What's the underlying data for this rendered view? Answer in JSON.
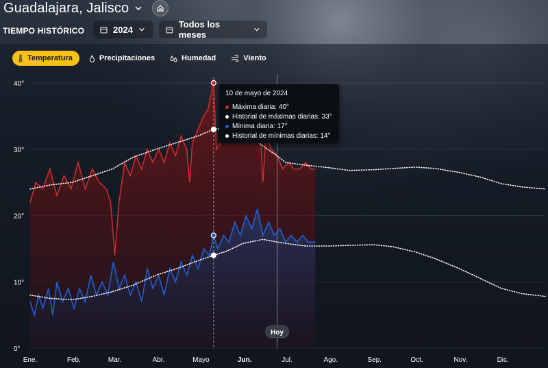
{
  "header": {
    "location": "Guadalajara, Jalisco",
    "section_label": "TIEMPO HISTÓRICO",
    "year": "2024",
    "months": "Todos los meses"
  },
  "tabs": [
    {
      "label": "Temperatura",
      "icon": "thermometer-icon",
      "active": true
    },
    {
      "label": "Precipitaciones",
      "icon": "droplet-icon",
      "active": false
    },
    {
      "label": "Humedad",
      "icon": "humidity-icon",
      "active": false
    },
    {
      "label": "Viento",
      "icon": "wind-icon",
      "active": false
    }
  ],
  "colors": {
    "accent": "#f6c21a",
    "max_line": "#d02a2a",
    "min_line": "#1f5fd6",
    "historical": "#ffffff"
  },
  "tooltip": {
    "date": "10 de mayo de 2024",
    "rows": [
      {
        "text": "Máxima diaria: 40°",
        "color": "#d02a2a"
      },
      {
        "text": "Historial de máximas diarias: 33°",
        "color": "#ffffff"
      },
      {
        "text": "Mínima diaria: 17°",
        "color": "#1f5fd6"
      },
      {
        "text": "Historial de mínimas diarias: 14°",
        "color": "#ffffff"
      }
    ]
  },
  "today_label": "Hoy",
  "chart_data": {
    "type": "line",
    "x_categories": [
      "Ene.",
      "Feb.",
      "Mar.",
      "Abr.",
      "Mayo",
      "Jun.",
      "Jul.",
      "Ago.",
      "Sep.",
      "Oct.",
      "Nov.",
      "Dic."
    ],
    "highlighted_month": "Jun.",
    "ylim": [
      0,
      40
    ],
    "yticks": [
      "0°",
      "10°",
      "20°",
      "30°",
      "40°"
    ],
    "grid": true,
    "today_day_of_year": 176,
    "selected_day_of_year": 131,
    "series": [
      {
        "name": "Máxima diaria",
        "style": "solid",
        "points": [
          [
            1,
            22
          ],
          [
            5,
            25
          ],
          [
            10,
            24
          ],
          [
            15,
            27
          ],
          [
            20,
            23
          ],
          [
            25,
            26
          ],
          [
            30,
            24
          ],
          [
            35,
            28
          ],
          [
            40,
            24
          ],
          [
            45,
            27
          ],
          [
            50,
            25
          ],
          [
            55,
            24
          ],
          [
            58,
            22
          ],
          [
            61,
            14
          ],
          [
            64,
            22
          ],
          [
            68,
            28
          ],
          [
            72,
            26
          ],
          [
            76,
            29
          ],
          [
            80,
            27
          ],
          [
            84,
            30
          ],
          [
            88,
            28
          ],
          [
            92,
            30
          ],
          [
            96,
            28
          ],
          [
            100,
            31
          ],
          [
            104,
            29
          ],
          [
            108,
            32
          ],
          [
            112,
            30
          ],
          [
            114,
            25
          ],
          [
            116,
            31
          ],
          [
            120,
            33
          ],
          [
            124,
            35
          ],
          [
            127,
            36
          ],
          [
            129,
            38
          ],
          [
            131,
            40
          ],
          [
            133,
            30
          ],
          [
            136,
            31
          ],
          [
            140,
            33
          ],
          [
            144,
            31
          ],
          [
            148,
            32
          ],
          [
            152,
            34
          ],
          [
            156,
            32
          ],
          [
            160,
            34
          ],
          [
            164,
            33
          ],
          [
            166,
            25
          ],
          [
            168,
            32
          ],
          [
            172,
            30
          ],
          [
            176,
            29
          ],
          [
            180,
            27
          ],
          [
            184,
            28
          ],
          [
            188,
            27
          ],
          [
            192,
            27
          ],
          [
            196,
            28
          ],
          [
            200,
            27
          ],
          [
            203,
            27
          ]
        ]
      },
      {
        "name": "Historial de máximas diarias",
        "style": "dotted",
        "points": [
          [
            1,
            24
          ],
          [
            15,
            24.6
          ],
          [
            31,
            25
          ],
          [
            45,
            26
          ],
          [
            59,
            27
          ],
          [
            74,
            28.8
          ],
          [
            90,
            30
          ],
          [
            105,
            31
          ],
          [
            120,
            32
          ],
          [
            131,
            33
          ],
          [
            140,
            33.2
          ],
          [
            152,
            32.5
          ],
          [
            166,
            30.5
          ],
          [
            176,
            29
          ],
          [
            182,
            28
          ],
          [
            196,
            27.6
          ],
          [
            213,
            27.2
          ],
          [
            227,
            26.8
          ],
          [
            244,
            26.9
          ],
          [
            258,
            27.1
          ],
          [
            274,
            27.3
          ],
          [
            288,
            27.1
          ],
          [
            305,
            26.5
          ],
          [
            320,
            25.8
          ],
          [
            335,
            24.8
          ],
          [
            350,
            24.3
          ],
          [
            366,
            24
          ]
        ]
      },
      {
        "name": "Mínima diaria",
        "style": "solid",
        "points": [
          [
            1,
            7
          ],
          [
            4,
            5
          ],
          [
            7,
            8
          ],
          [
            10,
            6
          ],
          [
            14,
            9
          ],
          [
            17,
            5
          ],
          [
            20,
            10
          ],
          [
            24,
            7
          ],
          [
            28,
            9
          ],
          [
            32,
            6
          ],
          [
            36,
            9
          ],
          [
            40,
            7
          ],
          [
            44,
            11
          ],
          [
            48,
            8
          ],
          [
            52,
            10
          ],
          [
            56,
            8
          ],
          [
            60,
            13
          ],
          [
            64,
            9
          ],
          [
            68,
            11
          ],
          [
            72,
            8
          ],
          [
            76,
            10
          ],
          [
            80,
            7
          ],
          [
            84,
            12
          ],
          [
            88,
            9
          ],
          [
            92,
            11
          ],
          [
            96,
            8
          ],
          [
            100,
            12
          ],
          [
            104,
            10
          ],
          [
            108,
            13
          ],
          [
            112,
            11
          ],
          [
            116,
            14
          ],
          [
            120,
            12
          ],
          [
            124,
            15
          ],
          [
            128,
            14
          ],
          [
            131,
            17
          ],
          [
            134,
            15
          ],
          [
            138,
            17
          ],
          [
            142,
            16
          ],
          [
            146,
            19
          ],
          [
            150,
            17
          ],
          [
            154,
            20
          ],
          [
            158,
            18
          ],
          [
            162,
            21
          ],
          [
            166,
            17
          ],
          [
            170,
            19
          ],
          [
            174,
            17
          ],
          [
            178,
            18
          ],
          [
            182,
            16
          ],
          [
            186,
            17
          ],
          [
            190,
            16
          ],
          [
            194,
            17
          ],
          [
            198,
            16
          ],
          [
            203,
            16
          ]
        ]
      },
      {
        "name": "Historial de mínimas diarias",
        "style": "dotted",
        "points": [
          [
            1,
            8
          ],
          [
            15,
            7.5
          ],
          [
            31,
            7.3
          ],
          [
            45,
            7.8
          ],
          [
            59,
            8.5
          ],
          [
            74,
            9.5
          ],
          [
            90,
            11
          ],
          [
            105,
            12
          ],
          [
            120,
            13.2
          ],
          [
            131,
            14
          ],
          [
            140,
            14.6
          ],
          [
            152,
            15.8
          ],
          [
            166,
            16.4
          ],
          [
            176,
            16
          ],
          [
            182,
            15.8
          ],
          [
            196,
            15.4
          ],
          [
            213,
            15.4
          ],
          [
            227,
            15.5
          ],
          [
            244,
            15.6
          ],
          [
            258,
            15.3
          ],
          [
            274,
            14.5
          ],
          [
            288,
            13.5
          ],
          [
            305,
            12
          ],
          [
            320,
            10.5
          ],
          [
            335,
            9
          ],
          [
            350,
            8.2
          ],
          [
            366,
            7.8
          ]
        ]
      }
    ]
  }
}
